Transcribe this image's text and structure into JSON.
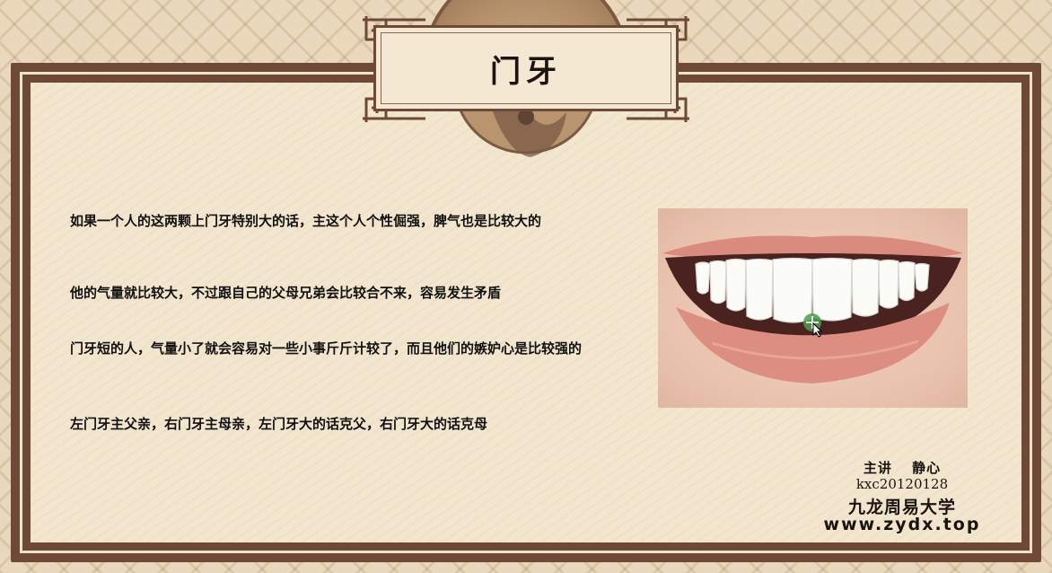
{
  "slide": {
    "title": "门牙",
    "paragraphs": [
      "如果一个人的这两颗上门牙特别大的话，主这个人个性倔强，脾气也是比较大的",
      "他的气量就比较大，不过跟自己的父母兄弟会比较合不来，容易发生矛盾",
      "门牙短的人，气量小了就会容易对一些小事斤斤计较了，而且他们的嫉妒心是比较强的",
      "左门牙主父亲，右门牙主母亲，左门牙大的话克父，右门牙大的话克母"
    ],
    "credits": {
      "presenter": "主讲　 静心",
      "id": "kxc20120128",
      "organization": "九龙周易大学",
      "website": "www.zydx.top"
    }
  },
  "colors": {
    "frame": "#6e4a36",
    "panel": "#f3e6cf",
    "text": "#111111"
  },
  "icons": {
    "cursor": "move-cursor-icon"
  }
}
